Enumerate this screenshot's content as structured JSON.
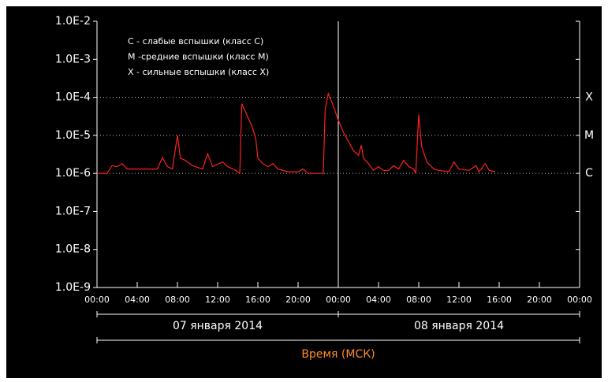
{
  "chart_data": {
    "type": "line",
    "log_scale": true,
    "color": "#ff2020",
    "xlabel": "Время (МСК)",
    "annotations": [
      "C - слабые вспышки (класс C)",
      "M -средние вспышки (класс M)",
      "X - сильные вспышки (класс X)"
    ],
    "class_labels": [
      {
        "value": 0.0001,
        "label": "X"
      },
      {
        "value": 1e-05,
        "label": "M"
      },
      {
        "value": 1e-06,
        "label": "C"
      }
    ],
    "day_boundary": 24,
    "date_labels": [
      {
        "label": "07 января 2014",
        "range": [
          0,
          24
        ]
      },
      {
        "label": "08 января 2014",
        "range": [
          24,
          48
        ]
      }
    ],
    "xlim": [
      0,
      48
    ],
    "xticks": [
      {
        "value": 0,
        "label": "00:00"
      },
      {
        "value": 4,
        "label": "04:00"
      },
      {
        "value": 8,
        "label": "08:00"
      },
      {
        "value": 12,
        "label": "12:00"
      },
      {
        "value": 16,
        "label": "16:00"
      },
      {
        "value": 20,
        "label": "20:00"
      },
      {
        "value": 24,
        "label": "00:00"
      },
      {
        "value": 28,
        "label": "04:00"
      },
      {
        "value": 32,
        "label": "08:00"
      },
      {
        "value": 36,
        "label": "12:00"
      },
      {
        "value": 40,
        "label": "16:00"
      },
      {
        "value": 44,
        "label": "20:00"
      },
      {
        "value": 48,
        "label": "00:00"
      }
    ],
    "ylim": [
      1e-09,
      0.01
    ],
    "yticks": [
      {
        "value": 1e-09,
        "label": "1.0E-9"
      },
      {
        "value": 1e-08,
        "label": "1.0E-8"
      },
      {
        "value": 1e-07,
        "label": "1.0E-7"
      },
      {
        "value": 1e-06,
        "label": "1.0E-6"
      },
      {
        "value": 1e-05,
        "label": "1.0E-5"
      },
      {
        "value": 0.0001,
        "label": "1.0E-4"
      },
      {
        "value": 0.001,
        "label": "1.0E-3"
      },
      {
        "value": 0.01,
        "label": "1.0E-2"
      }
    ],
    "x": [
      0,
      1,
      1.5,
      2,
      2.5,
      3,
      4,
      5,
      6,
      6.5,
      7,
      7.5,
      8,
      8.3,
      8.8,
      9.5,
      10.5,
      11,
      11.5,
      12.5,
      13,
      13.8,
      14.2,
      14.4,
      14.8,
      15.5,
      15.8,
      16,
      16.5,
      17,
      17.5,
      18,
      19,
      20,
      20.5,
      21,
      22,
      22.5,
      22.7,
      23,
      23.5,
      24,
      24.5,
      25,
      25.5,
      26,
      26.3,
      26.5,
      27,
      27.5,
      28,
      28.5,
      29,
      29.5,
      30,
      30.5,
      31,
      31.5,
      31.7,
      32,
      32.3,
      32.8,
      33.5,
      34,
      35,
      35.5,
      36,
      37,
      37.7,
      38,
      38.6,
      39,
      39.6
    ],
    "values": [
      1e-06,
      1e-06,
      1.6e-06,
      1.5e-06,
      1.8e-06,
      1.3e-06,
      1.3e-06,
      1.3e-06,
      1.3e-06,
      2.6e-06,
      1.5e-06,
      1.3e-06,
      1e-05,
      2.5e-06,
      2.2e-06,
      1.6e-06,
      1.3e-06,
      3.3e-06,
      1.5e-06,
      2e-06,
      1.5e-06,
      1.2e-06,
      1e-06,
      6.8e-05,
      4e-05,
      1.5e-05,
      8e-06,
      2.5e-06,
      1.8e-06,
      1.5e-06,
      1.8e-06,
      1.3e-06,
      1.1e-06,
      1.1e-06,
      1.3e-06,
      1e-06,
      1e-06,
      1e-06,
      5e-05,
      0.000125,
      6e-05,
      2.5e-05,
      1.2e-05,
      7e-06,
      4e-06,
      3e-06,
      5.5e-06,
      2.5e-06,
      1.8e-06,
      1.2e-06,
      1.5e-06,
      1.2e-06,
      1.2e-06,
      1.6e-06,
      1.3e-06,
      2.2e-06,
      1.5e-06,
      1.3e-06,
      1e-06,
      3.5e-05,
      5e-06,
      2e-06,
      1.3e-06,
      1.2e-06,
      1.1e-06,
      2e-06,
      1.3e-06,
      1.2e-06,
      1.6e-06,
      1.1e-06,
      1.8e-06,
      1.2e-06,
      1.1e-06
    ]
  }
}
